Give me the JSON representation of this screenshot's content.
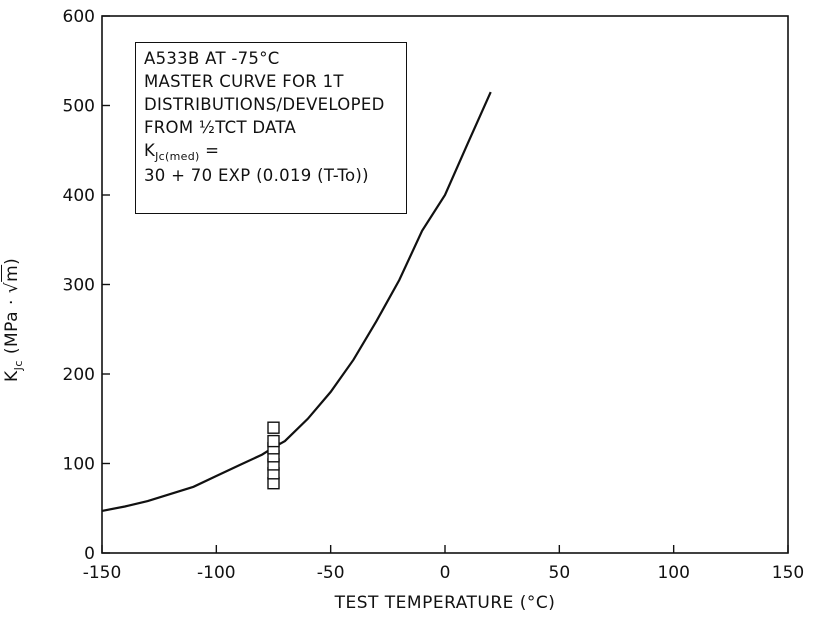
{
  "chart_data": {
    "type": "line",
    "xlabel": "TEST TEMPERATURE (°C)",
    "ylabel_parts": {
      "k": "K",
      "sub": "Jc",
      "units_pre": " (MPa · √",
      "units_m": "m",
      "units_post": ")"
    },
    "xlim": [
      -150,
      150
    ],
    "ylim": [
      0,
      600
    ],
    "x_ticks": [
      -150,
      -100,
      -50,
      0,
      50,
      100,
      150
    ],
    "y_ticks": [
      0,
      100,
      200,
      300,
      400,
      500,
      600
    ],
    "x_tick_labels": [
      "-150",
      "-100",
      "-50",
      "0",
      "50",
      "100",
      "150"
    ],
    "y_tick_labels": [
      "0",
      "100",
      "200",
      "300",
      "400",
      "500",
      "600"
    ],
    "grid": false,
    "legend_placement": "top-left",
    "annotation": {
      "line1": "A533B AT -75°C",
      "line2": "MASTER CURVE FOR 1T",
      "line3": "DISTRIBUTIONS/DEVELOPED",
      "line4": "FROM ½TCT DATA",
      "line5_k": "K",
      "line5_sub": "Jc(med)",
      "line5_rest": " =",
      "line6": "30 + 70 EXP (0.019 (T-To))"
    },
    "series": [
      {
        "type": "line",
        "x": [
          -150,
          -140,
          -130,
          -120,
          -110,
          -100,
          -90,
          -80,
          -75,
          -70,
          -60,
          -50,
          -40,
          -30,
          -20,
          -10,
          0,
          10,
          20
        ],
        "values": [
          47,
          52,
          58,
          66,
          74,
          86,
          98,
          110,
          118,
          125,
          150,
          180,
          216,
          259,
          305,
          360,
          400,
          458,
          515
        ],
        "color": "#111111"
      },
      {
        "type": "scatter",
        "x": [
          -75,
          -75,
          -75,
          -75,
          -75,
          -75,
          -75
        ],
        "values": [
          78,
          89,
          99,
          108,
          117,
          125,
          140
        ],
        "marker": "open-square",
        "color": "#111111"
      }
    ]
  }
}
